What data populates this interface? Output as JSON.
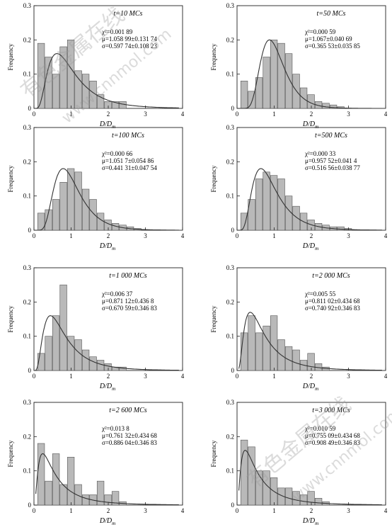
{
  "figure": {
    "ylabel": "Frequency",
    "xlabel": "D/D",
    "xlabel_sub": "m",
    "watermark_text": [
      "有色金属在线",
      "www.cnnmol.com"
    ]
  },
  "chart_data": [
    {
      "type": "bar",
      "title": "t=10 MCs",
      "stats": [
        "χ²=0.001 89",
        "μ=1.058 99±0.131 74",
        "σ=0.597 74±0.108 23"
      ],
      "xlim": [
        0,
        4
      ],
      "ylim": [
        0,
        0.3
      ],
      "xticks": [
        "0",
        "1",
        "2",
        "3",
        "4"
      ],
      "yticks": [
        "0",
        "0.1",
        "0.2",
        "0.3"
      ],
      "bin_width": 0.2,
      "bins_x": [
        0.2,
        0.4,
        0.6,
        0.8,
        1.0,
        1.2,
        1.4,
        1.6,
        1.8,
        2.0,
        2.2,
        2.4
      ],
      "values": [
        0.19,
        0.15,
        0.1,
        0.18,
        0.2,
        0.11,
        0.1,
        0.08,
        0.04,
        0.02,
        0.02,
        0.02
      ],
      "fit": {
        "mu": 1.05899,
        "sigma": 0.59774,
        "peak": 0.16,
        "color": "#333333"
      }
    },
    {
      "type": "bar",
      "title": "t=50 MCs",
      "stats": [
        "χ²=0.000 59",
        "μ=1.067±0.040 69",
        "σ=0.365 53±0.035 85"
      ],
      "xlim": [
        0,
        4
      ],
      "ylim": [
        0,
        0.3
      ],
      "xticks": [
        "0",
        "1",
        "2",
        "3",
        "4"
      ],
      "yticks": [
        "0",
        "0.1",
        "0.2",
        "0.3"
      ],
      "bin_width": 0.2,
      "bins_x": [
        0.2,
        0.4,
        0.6,
        0.8,
        1.0,
        1.2,
        1.4,
        1.6,
        1.8,
        2.0,
        2.2,
        2.4,
        2.6,
        2.8
      ],
      "values": [
        0.08,
        0.05,
        0.09,
        0.15,
        0.2,
        0.19,
        0.16,
        0.1,
        0.06,
        0.04,
        0.02,
        0.015,
        0.01,
        0.005
      ],
      "fit": {
        "mu": 1.067,
        "sigma": 0.36553,
        "peak": 0.2,
        "color": "#333333"
      }
    },
    {
      "type": "bar",
      "title": "t=100 MCs",
      "stats": [
        "χ²=0.000 66",
        "μ=1.051 7±0.054 86",
        "σ=0.441 31±0.047 54"
      ],
      "xlim": [
        0,
        4
      ],
      "ylim": [
        0,
        0.3
      ],
      "xticks": [
        "0",
        "1",
        "2",
        "3",
        "4"
      ],
      "yticks": [
        "0",
        "0.1",
        "0.2",
        "0.3"
      ],
      "bin_width": 0.2,
      "bins_x": [
        0.2,
        0.4,
        0.6,
        0.8,
        1.0,
        1.2,
        1.4,
        1.6,
        1.8,
        2.0,
        2.2,
        2.4,
        2.6,
        2.8
      ],
      "values": [
        0.05,
        0.06,
        0.09,
        0.14,
        0.18,
        0.17,
        0.12,
        0.09,
        0.05,
        0.03,
        0.02,
        0.015,
        0.01,
        0.005
      ],
      "fit": {
        "mu": 1.0517,
        "sigma": 0.44131,
        "peak": 0.18,
        "color": "#333333"
      }
    },
    {
      "type": "bar",
      "title": "t=500 MCs",
      "stats": [
        "χ²=0.000 33",
        "μ=0.957 52±0.041 4",
        "σ=0.516 56±0.038 77"
      ],
      "xlim": [
        0,
        4
      ],
      "ylim": [
        0,
        0.3
      ],
      "xticks": [
        "0",
        "1",
        "2",
        "3",
        "4"
      ],
      "yticks": [
        "0",
        "0.1",
        "0.2",
        "0.3"
      ],
      "bin_width": 0.2,
      "bins_x": [
        0.2,
        0.4,
        0.6,
        0.8,
        1.0,
        1.2,
        1.4,
        1.6,
        1.8,
        2.0,
        2.2,
        2.4,
        2.6,
        2.8,
        3.0
      ],
      "values": [
        0.05,
        0.09,
        0.15,
        0.17,
        0.16,
        0.15,
        0.1,
        0.07,
        0.05,
        0.03,
        0.02,
        0.015,
        0.01,
        0.01,
        0.005
      ],
      "fit": {
        "mu": 0.95752,
        "sigma": 0.51656,
        "peak": 0.18,
        "color": "#333333"
      }
    },
    {
      "type": "bar",
      "title": "t=1 000 MCs",
      "stats": [
        "χ²=0.006 37",
        "μ=0.871 12±0.436 8",
        "σ=0.670 59±0.346 83"
      ],
      "xlim": [
        0,
        4
      ],
      "ylim": [
        0,
        0.3
      ],
      "xticks": [
        "0",
        "1",
        "2",
        "3",
        "4"
      ],
      "yticks": [
        "0",
        "0.1",
        "0.2",
        "0.3"
      ],
      "bin_width": 0.2,
      "bins_x": [
        0.2,
        0.4,
        0.6,
        0.8,
        1.0,
        1.2,
        1.4,
        1.6,
        1.8,
        2.0,
        2.2,
        2.4
      ],
      "values": [
        0.05,
        0.1,
        0.16,
        0.25,
        0.1,
        0.09,
        0.06,
        0.04,
        0.03,
        0.02,
        0.01,
        0.01
      ],
      "fit": {
        "mu": 0.87112,
        "sigma": 0.67059,
        "peak": 0.16,
        "color": "#333333"
      }
    },
    {
      "type": "bar",
      "title": "t=2 000 MCs",
      "stats": [
        "χ²=0.005 55",
        "μ=0.811 02±0.434 68",
        "σ=0.740 92±0.346 83"
      ],
      "xlim": [
        0,
        4
      ],
      "ylim": [
        0,
        0.3
      ],
      "xticks": [
        "0",
        "1",
        "2",
        "3",
        "4"
      ],
      "yticks": [
        "0",
        "0.1",
        "0.2",
        "0.3"
      ],
      "bin_width": 0.2,
      "bins_x": [
        0.2,
        0.4,
        0.6,
        0.8,
        1.0,
        1.2,
        1.4,
        1.6,
        1.8,
        2.0,
        2.2,
        2.4
      ],
      "values": [
        0.11,
        0.16,
        0.11,
        0.13,
        0.16,
        0.09,
        0.07,
        0.06,
        0.03,
        0.05,
        0.02,
        0.01
      ],
      "fit": {
        "mu": 0.81102,
        "sigma": 0.74092,
        "peak": 0.17,
        "color": "#333333"
      }
    },
    {
      "type": "bar",
      "title": "t=2 600 MCs",
      "stats": [
        "χ²=0.013 8",
        "μ=0.761 32±0.434 68",
        "σ=0.886 04±0.346 83"
      ],
      "xlim": [
        0,
        4
      ],
      "ylim": [
        0,
        0.3
      ],
      "xticks": [
        "0",
        "1",
        "2",
        "3",
        "4"
      ],
      "yticks": [
        "0",
        "0.1",
        "0.2",
        "0.3"
      ],
      "bin_width": 0.2,
      "bins_x": [
        0.2,
        0.4,
        0.6,
        0.8,
        1.0,
        1.2,
        1.4,
        1.6,
        1.8,
        2.0,
        2.2,
        2.4
      ],
      "values": [
        0.18,
        0.07,
        0.15,
        0.06,
        0.14,
        0.06,
        0.03,
        0.03,
        0.07,
        0.03,
        0.04,
        0.01
      ],
      "fit": {
        "mu": 0.76132,
        "sigma": 0.88604,
        "peak": 0.15,
        "color": "#333333"
      }
    },
    {
      "type": "bar",
      "title": "t=3 000 MCs",
      "stats": [
        "χ²=0.010 59",
        "μ=0.755 09±0.434 68",
        "σ=0.908 49±0.346 83"
      ],
      "xlim": [
        0,
        4
      ],
      "ylim": [
        0,
        0.3
      ],
      "xticks": [
        "0",
        "1",
        "2",
        "3",
        "4"
      ],
      "yticks": [
        "0",
        "0.1",
        "0.2",
        "0.3"
      ],
      "bin_width": 0.2,
      "bins_x": [
        0.2,
        0.4,
        0.6,
        0.8,
        1.0,
        1.2,
        1.4,
        1.6,
        1.8,
        2.0,
        2.2,
        2.4
      ],
      "values": [
        0.19,
        0.17,
        0.1,
        0.1,
        0.08,
        0.05,
        0.05,
        0.04,
        0.03,
        0.04,
        0.02,
        0.01
      ],
      "fit": {
        "mu": 0.75509,
        "sigma": 0.90849,
        "peak": 0.16,
        "color": "#333333"
      }
    }
  ]
}
